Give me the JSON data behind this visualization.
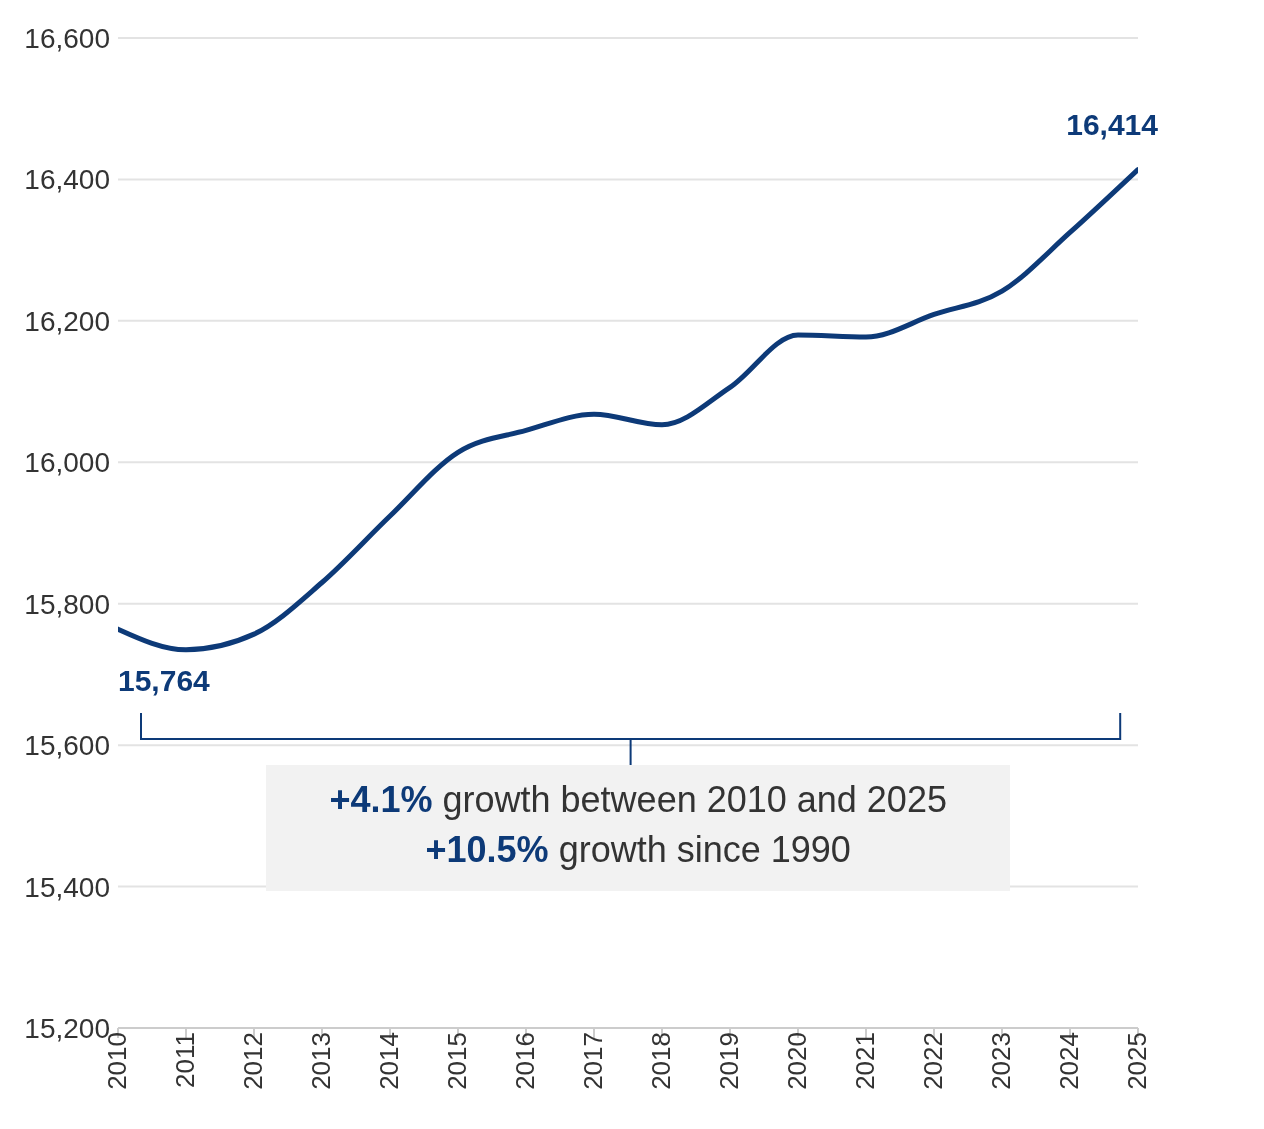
{
  "chart_data": {
    "type": "line",
    "x": [
      2010,
      2011,
      2012,
      2013,
      2014,
      2015,
      2016,
      2017,
      2018,
      2019,
      2020,
      2021,
      2022,
      2023,
      2024,
      2025
    ],
    "series": [
      {
        "color": "#0d3a78",
        "values": [
          15764,
          15735,
          15757,
          15830,
          15924,
          16014,
          16045,
          16068,
          16053,
          16106,
          16180,
          16177,
          16209,
          16242,
          16325,
          16414
        ]
      }
    ],
    "xlim": [
      2010,
      2025
    ],
    "xticks": [
      2010,
      2011,
      2012,
      2013,
      2014,
      2015,
      2016,
      2017,
      2018,
      2019,
      2020,
      2021,
      2022,
      2023,
      2024,
      2025
    ],
    "ylim": [
      15200,
      16600
    ],
    "yticks": [
      {
        "value": 15200,
        "label": "15,200"
      },
      {
        "value": 15400,
        "label": "15,400"
      },
      {
        "value": 15600,
        "label": "15,600"
      },
      {
        "value": 15800,
        "label": "15,800"
      },
      {
        "value": 16000,
        "label": "16,000"
      },
      {
        "value": 16200,
        "label": "16,200"
      },
      {
        "value": 16400,
        "label": "16,400"
      },
      {
        "value": 16600,
        "label": "16,600"
      }
    ],
    "grid": "y",
    "legend": false,
    "marker": "none",
    "line_style": "solid",
    "annotations": [
      {
        "text": "15,764",
        "x": 2010,
        "y": 15764
      },
      {
        "text": "16,414",
        "x": 2025,
        "y": 16414
      },
      "+4.1% growth between 2010 and 2025",
      "+10.5% growth since 1990"
    ]
  }
}
